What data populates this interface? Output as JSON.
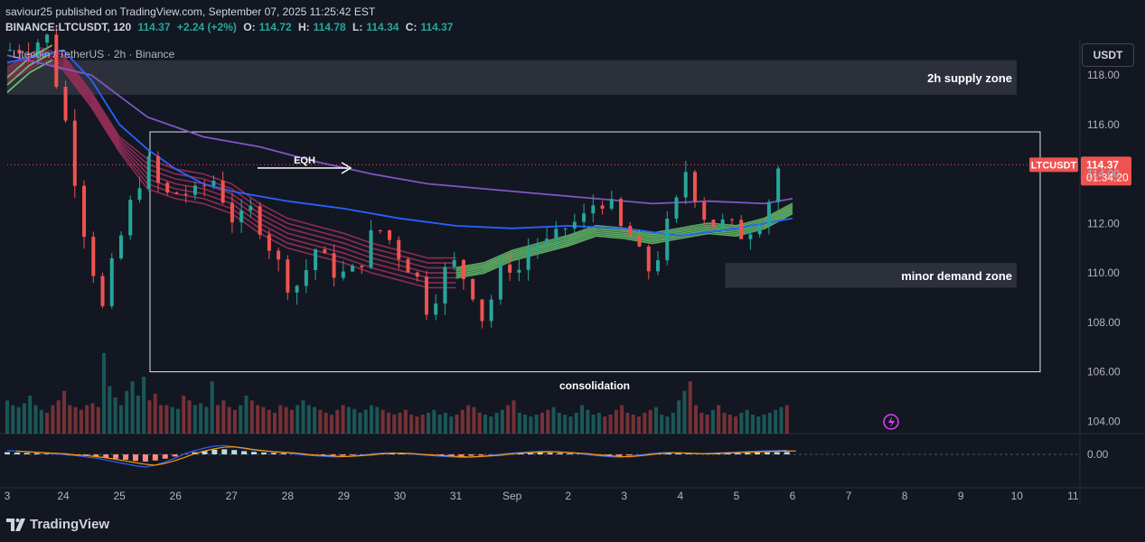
{
  "header": {
    "published": "saviour25 published on TradingView.com, September 07, 2025 11:25:42 EST",
    "symbol": "BINANCE:LTCUSDT, 120",
    "last": "114.37",
    "change": "+2.24 (+2%)",
    "o_label": "O:",
    "o": "114.72",
    "h_label": "H:",
    "h": "114.78",
    "l_label": "L:",
    "l": "114.34",
    "c_label": "C:",
    "c": "114.37"
  },
  "pair_title": "Litecoin / TetherUS · 2h · Binance",
  "currency_button": "USDT",
  "footer": {
    "brand": "TradingView"
  },
  "colors": {
    "bg": "#131722",
    "up": "#26a69a",
    "down": "#ef5350",
    "ema_blue": "#2962ff",
    "ema_purple": "#7e57c2",
    "ribbon_green": "#66bb6a",
    "ribbon_red": "#9c2f5a"
  },
  "chart_data": {
    "type": "candlestick",
    "ylim": [
      103.5,
      119.5
    ],
    "y_ticks": [
      "118.00",
      "116.00",
      "114.00",
      "112.00",
      "110.00",
      "108.00",
      "106.00",
      "104.00"
    ],
    "y_tick_values": [
      118,
      116,
      114,
      112,
      110,
      108,
      106,
      104
    ],
    "x_ticks": [
      "3",
      "24",
      "25",
      "26",
      "27",
      "28",
      "29",
      "30",
      "31",
      "Sep",
      "2",
      "3",
      "4",
      "5",
      "6",
      "7",
      "8",
      "9",
      "10",
      "11"
    ],
    "price_label": {
      "symbol": "LTCUSDT",
      "price": "114.37",
      "countdown": "01:34:20",
      "value": 114.37
    },
    "oscillator_label": "0.00",
    "zones": [
      {
        "name": "2h supply zone",
        "from": 117.2,
        "to": 118.6
      },
      {
        "name": "minor demand zone",
        "from": 109.4,
        "to": 110.4
      }
    ],
    "annotations": {
      "eqh": "EQH",
      "consolidation": "consolidation"
    },
    "consolidation_box": {
      "from": 106.0,
      "to": 115.7
    },
    "close_path": [
      [
        0,
        119.0
      ],
      [
        0.4,
        119.2
      ],
      [
        0.7,
        119.6
      ],
      [
        0.9,
        117.5
      ],
      [
        1.1,
        115.5
      ],
      [
        1.3,
        112.5
      ],
      [
        1.5,
        110.5
      ],
      [
        1.7,
        108.5
      ],
      [
        1.9,
        110.5
      ],
      [
        2.1,
        112.0
      ],
      [
        2.3,
        113.5
      ],
      [
        2.5,
        114.5
      ],
      [
        2.7,
        113.5
      ],
      [
        2.9,
        113.0
      ],
      [
        3.1,
        113.4
      ],
      [
        3.3,
        113.0
      ],
      [
        3.5,
        113.5
      ],
      [
        3.7,
        113.8
      ],
      [
        3.9,
        112.8
      ],
      [
        4.1,
        111.8
      ],
      [
        4.3,
        112.6
      ],
      [
        4.5,
        112.0
      ],
      [
        4.7,
        111.0
      ],
      [
        4.9,
        110.0
      ],
      [
        5.1,
        109.3
      ],
      [
        5.3,
        110.0
      ],
      [
        5.5,
        111.0
      ],
      [
        5.7,
        110.3
      ],
      [
        5.9,
        110.0
      ],
      [
        6.1,
        109.8
      ],
      [
        6.3,
        110.5
      ],
      [
        6.5,
        111.5
      ],
      [
        6.7,
        111.8
      ],
      [
        6.9,
        111.0
      ],
      [
        7.1,
        110.5
      ],
      [
        7.3,
        109.8
      ],
      [
        7.5,
        108.5
      ],
      [
        7.7,
        109.5
      ],
      [
        7.9,
        110.5
      ],
      [
        8.1,
        110.0
      ],
      [
        8.3,
        109.3
      ],
      [
        8.5,
        108.0
      ],
      [
        8.7,
        109.5
      ],
      [
        8.9,
        110.5
      ],
      [
        9.1,
        110.0
      ],
      [
        9.3,
        111.0
      ],
      [
        9.5,
        111.3
      ],
      [
        9.7,
        111.0
      ],
      [
        9.9,
        111.8
      ],
      [
        10.1,
        112.0
      ],
      [
        10.3,
        112.2
      ],
      [
        10.5,
        113.0
      ],
      [
        10.7,
        113.0
      ],
      [
        10.9,
        111.8
      ],
      [
        11.1,
        111.5
      ],
      [
        11.3,
        110.5
      ],
      [
        11.5,
        110.0
      ],
      [
        11.7,
        111.5
      ],
      [
        11.9,
        112.5
      ],
      [
        12.1,
        114.2
      ],
      [
        12.3,
        113.0
      ],
      [
        12.5,
        112.0
      ],
      [
        12.7,
        112.0
      ],
      [
        12.9,
        111.8
      ],
      [
        13.1,
        111.6
      ],
      [
        13.3,
        112.0
      ],
      [
        13.5,
        112.6
      ],
      [
        13.7,
        113.6
      ],
      [
        13.8,
        115.0
      ],
      [
        13.9,
        114.37
      ]
    ],
    "ema_blue": [
      [
        0,
        118.5
      ],
      [
        1.0,
        119.0
      ],
      [
        1.5,
        117.8
      ],
      [
        2.0,
        116.0
      ],
      [
        2.5,
        115.0
      ],
      [
        3.0,
        114.2
      ],
      [
        3.5,
        113.6
      ],
      [
        4.0,
        113.3
      ],
      [
        5.0,
        112.9
      ],
      [
        6.0,
        112.6
      ],
      [
        7.0,
        112.2
      ],
      [
        8.0,
        111.9
      ],
      [
        9.0,
        111.8
      ],
      [
        10.0,
        111.9
      ],
      [
        11.0,
        111.8
      ],
      [
        12.0,
        111.5
      ],
      [
        13.0,
        111.8
      ],
      [
        14.0,
        112.2
      ]
    ],
    "ema_purple": [
      [
        0,
        118.8
      ],
      [
        1.5,
        118.0
      ],
      [
        2.5,
        116.3
      ],
      [
        3.5,
        115.5
      ],
      [
        4.5,
        115.1
      ],
      [
        5.5,
        114.5
      ],
      [
        6.5,
        114.0
      ],
      [
        7.5,
        113.6
      ],
      [
        8.5,
        113.4
      ],
      [
        9.5,
        113.2
      ],
      [
        10.5,
        113.0
      ],
      [
        11.5,
        112.8
      ],
      [
        12.5,
        112.9
      ],
      [
        13.5,
        112.8
      ],
      [
        14.0,
        113.0
      ]
    ],
    "ribbon_mid": [
      [
        0,
        118.0
      ],
      [
        0.6,
        118.8
      ],
      [
        1.0,
        118.5
      ],
      [
        1.5,
        117.0
      ],
      [
        2.0,
        115.2
      ],
      [
        2.5,
        114.0
      ],
      [
        3.0,
        113.6
      ],
      [
        3.5,
        113.4
      ],
      [
        4.0,
        113.0
      ],
      [
        4.5,
        112.2
      ],
      [
        5.0,
        111.6
      ],
      [
        5.5,
        111.3
      ],
      [
        6.0,
        111.0
      ],
      [
        6.5,
        110.6
      ],
      [
        7.0,
        110.3
      ],
      [
        7.5,
        110.0
      ],
      [
        8.0,
        110.0
      ],
      [
        8.5,
        110.2
      ],
      [
        9.0,
        110.7
      ],
      [
        9.5,
        111.0
      ],
      [
        10.0,
        111.3
      ],
      [
        10.5,
        111.7
      ],
      [
        11.0,
        111.6
      ],
      [
        11.5,
        111.4
      ],
      [
        12.0,
        111.6
      ],
      [
        12.5,
        111.8
      ],
      [
        13.0,
        111.7
      ],
      [
        13.5,
        112.0
      ],
      [
        14.0,
        112.6
      ]
    ],
    "volume": [
      0.35,
      0.3,
      0.28,
      0.32,
      0.4,
      0.3,
      0.25,
      0.22,
      0.3,
      0.35,
      0.45,
      0.3,
      0.28,
      0.25,
      0.3,
      0.32,
      0.28,
      0.85,
      0.5,
      0.38,
      0.3,
      0.45,
      0.55,
      0.4,
      0.6,
      0.35,
      0.42,
      0.3,
      0.3,
      0.28,
      0.26,
      0.4,
      0.35,
      0.3,
      0.32,
      0.28,
      0.55,
      0.3,
      0.35,
      0.28,
      0.25,
      0.3,
      0.4,
      0.35,
      0.3,
      0.28,
      0.25,
      0.22,
      0.3,
      0.28,
      0.25,
      0.3,
      0.35,
      0.3,
      0.28,
      0.25,
      0.22,
      0.2,
      0.25,
      0.3,
      0.28,
      0.26,
      0.22,
      0.25,
      0.3,
      0.28,
      0.25,
      0.22,
      0.2,
      0.22,
      0.25,
      0.2,
      0.18,
      0.2,
      0.22,
      0.25,
      0.2,
      0.22,
      0.18,
      0.2,
      0.25,
      0.3,
      0.28,
      0.22,
      0.2,
      0.18,
      0.22,
      0.25,
      0.3,
      0.35,
      0.22,
      0.2,
      0.18,
      0.2,
      0.22,
      0.25,
      0.28,
      0.22,
      0.2,
      0.18,
      0.22,
      0.3,
      0.25,
      0.2,
      0.22,
      0.18,
      0.2,
      0.25,
      0.3,
      0.22,
      0.2,
      0.18,
      0.22,
      0.25,
      0.28,
      0.2,
      0.18,
      0.22,
      0.35,
      0.45,
      0.55,
      0.3,
      0.22,
      0.2,
      0.25,
      0.3,
      0.22,
      0.2,
      0.18,
      0.22,
      0.25,
      0.2,
      0.18,
      0.2,
      0.22,
      0.25,
      0.28,
      0.3
    ],
    "macd_hist": [
      0.3,
      0.25,
      0.2,
      0.15,
      0.1,
      0.05,
      -0.05,
      -0.1,
      -0.2,
      -0.3,
      -0.45,
      -0.6,
      -0.75,
      -0.9,
      -1.0,
      -0.85,
      -0.6,
      -0.3,
      0.05,
      0.3,
      0.5,
      0.65,
      0.7,
      0.6,
      0.45,
      0.35,
      0.25,
      0.2,
      0.15,
      0.05,
      -0.05,
      -0.1,
      -0.15,
      -0.2,
      -0.18,
      -0.12,
      -0.05,
      0.05,
      0.1,
      0.12,
      0.08,
      0.02,
      -0.05,
      -0.1,
      -0.15,
      -0.2,
      -0.25,
      -0.2,
      -0.15,
      -0.08,
      0.02,
      0.1,
      0.15,
      0.2,
      0.25,
      0.22,
      0.18,
      0.12,
      0.05,
      -0.05,
      -0.12,
      -0.18,
      -0.22,
      -0.15,
      -0.05,
      0.05,
      0.12,
      0.15,
      0.12,
      0.08,
      0.05,
      0.08,
      0.12,
      0.15,
      0.18,
      0.22,
      0.25,
      0.28,
      0.3,
      0.32
    ]
  }
}
